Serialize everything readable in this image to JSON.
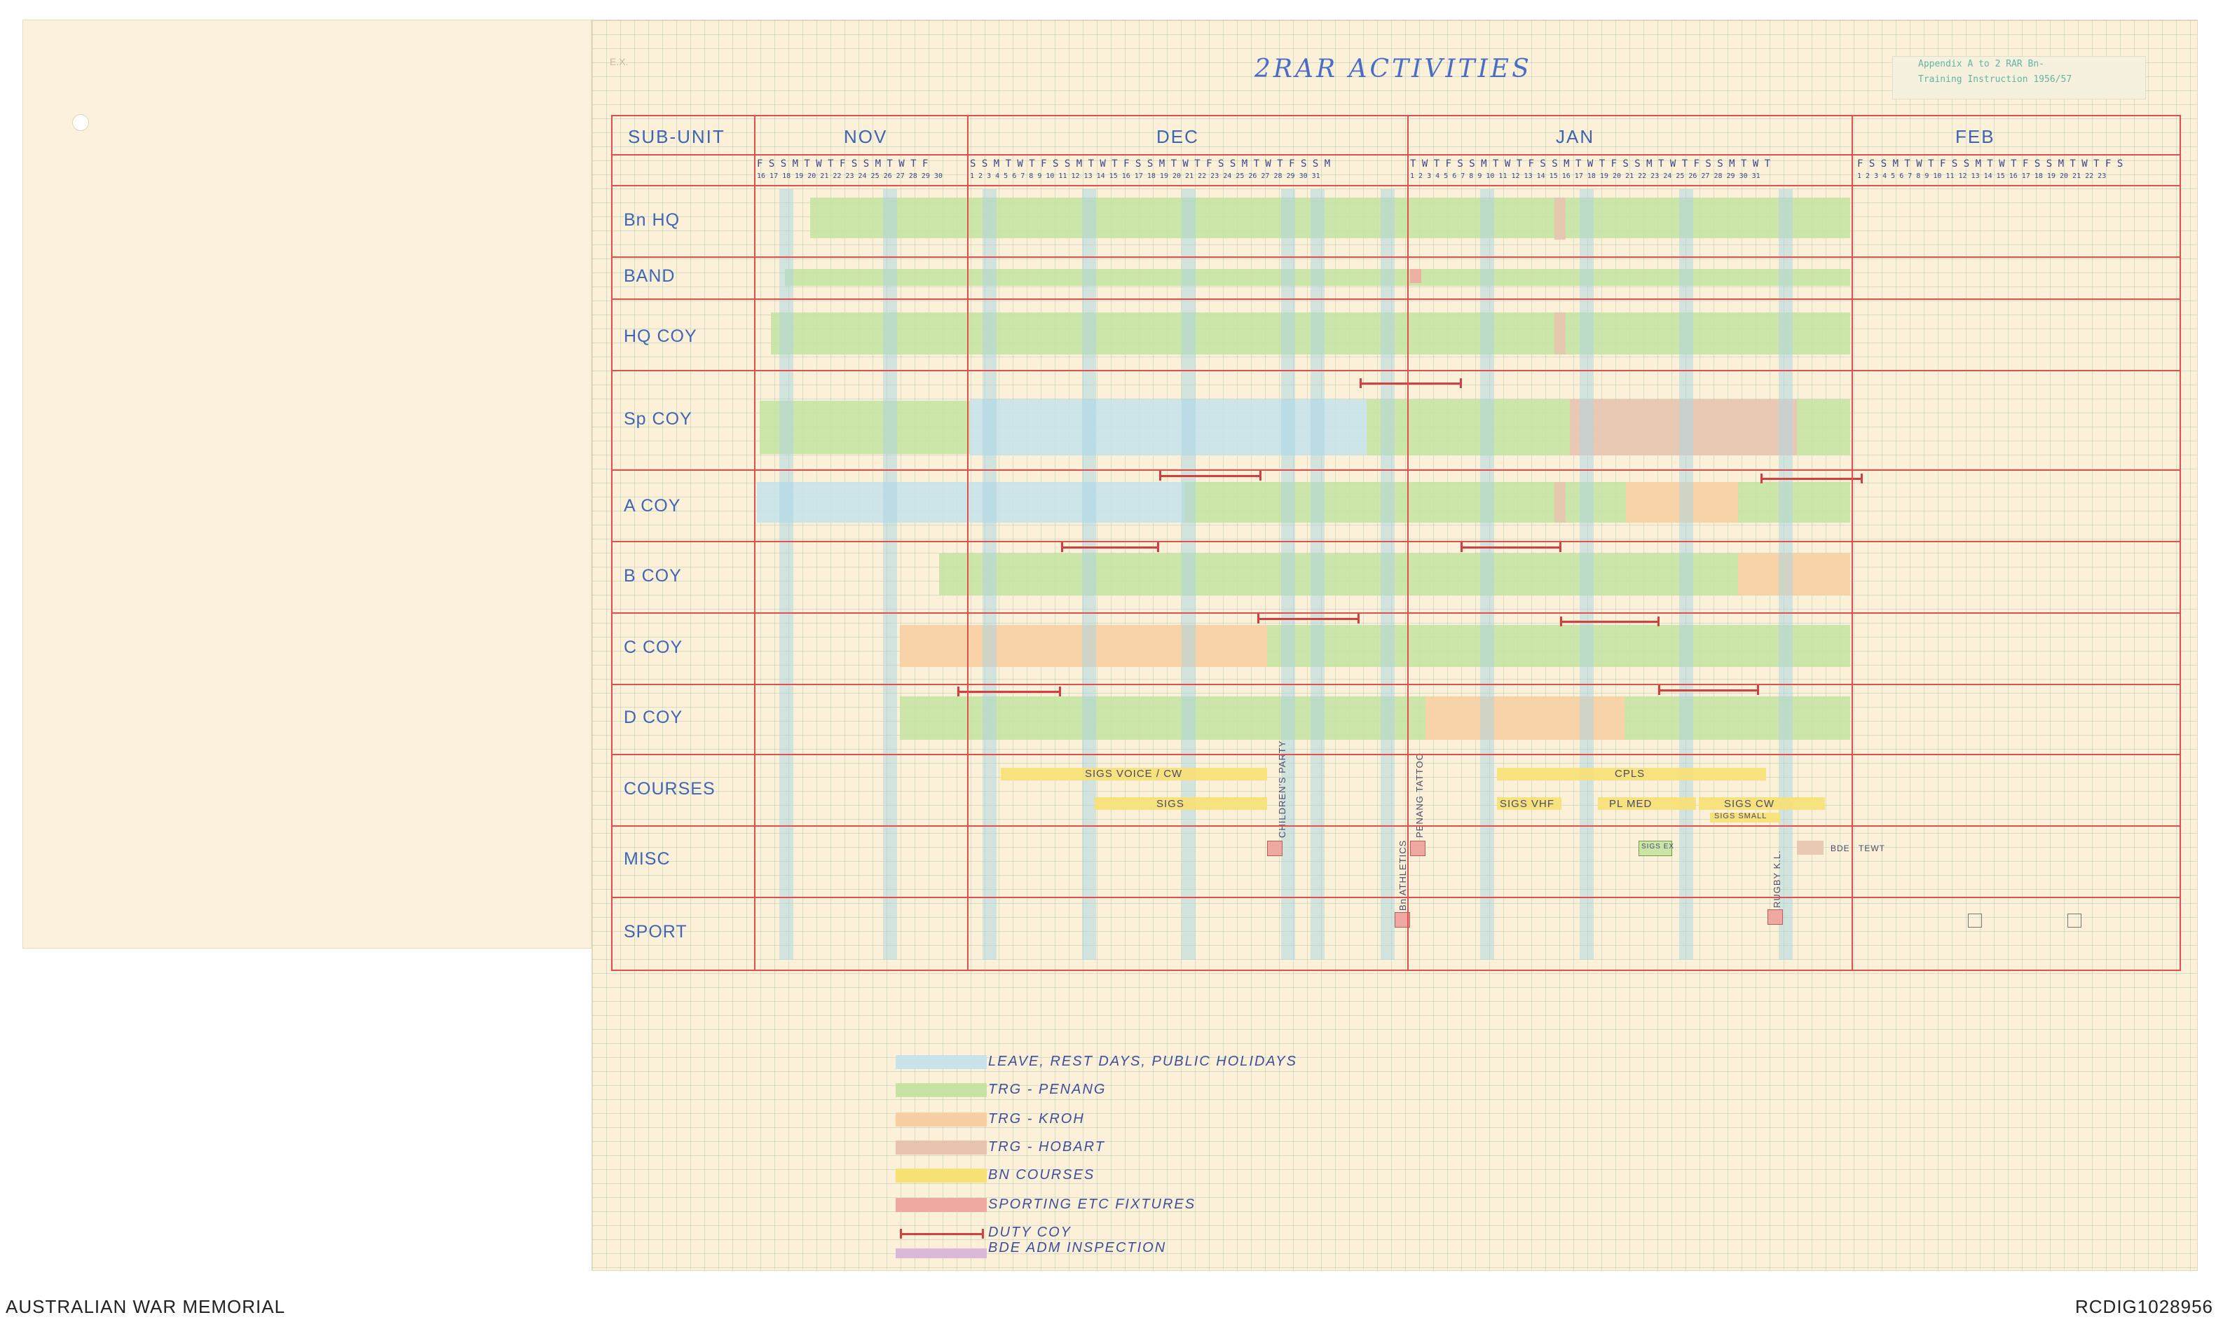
{
  "title": "2RAR ACTIVITIES",
  "stamp": {
    "line1": "Appendix A  to 2 RAR Bn-",
    "line2": "Training Instruction 1956/57"
  },
  "corner_mark": "E.X.",
  "headers": {
    "sub_unit": "SUB-UNIT",
    "months": [
      "NOV",
      "DEC",
      "JAN",
      "FEB"
    ]
  },
  "day_letters": [
    "F S S M T W T F S S M T W T F",
    "S S M T W T F S S M T W T F S S M T W T F S S M T W T F S S M",
    "T W T F S S M T W T F S S M T W T F S S M T W T F S S M T W T",
    "F S S M T W T F S S M T W T F S S M T W T F S"
  ],
  "day_numbers": [
    "16 17 18 19 20 21 22 23 24 25 26 27 28 29 30",
    "1 2 3 4 5 6 7 8 9 10 11 12 13 14 15 16 17 18 19 20 21 22 23 24 25 26 27 28 29 30 31",
    "1 2 3 4 5 6 7 8 9 10 11 12 13 14 15 16 17 18 19 20 21 22 23 24 25 26 27 28 29 30 31",
    "1 2 3 4 5 6 7 8 9 10 11 12 13 14 15 16 17 18 19 20 21 22 23"
  ],
  "units": [
    "Bn HQ",
    "BAND",
    "HQ COY",
    "Sp COY",
    "A COY",
    "B COY",
    "C COY",
    "D COY",
    "COURSES",
    "MISC",
    "SPORT"
  ],
  "chart_labels": {
    "sigs_voice_cw": "SIGS VOICE / CW",
    "sigs": "SIGS",
    "cpls": "CPLS",
    "sigs_vhf": "SIGS VHF",
    "pl_med": "PL MED",
    "sigs_cw": "SIGS CW",
    "sigs_small": "SIGS SMALL",
    "childrens_party": "CHILDREN'S PARTY",
    "penang_tattoo": "PENANG TATTOO",
    "bn_athletics": "Bn ATHLETICS",
    "rugby_kl": "RUGBY K.L.",
    "sigs_ex": "SIGS EX",
    "bde_tewt": "BDE",
    "tewt": "TEWT"
  },
  "legend": [
    {
      "label": "LEAVE, REST DAYS, PUBLIC HOLIDAYS",
      "color": "#c8e2ea"
    },
    {
      "label": "TRG - PENANG",
      "color": "#c6e3a3"
    },
    {
      "label": "TRG - KROH",
      "color": "#f7cfa2"
    },
    {
      "label": "TRG - HOBART",
      "color": "#e8c4b0"
    },
    {
      "label": "BN COURSES",
      "color": "#f7e074"
    },
    {
      "label": "SPORTING ETC FIXTURES",
      "color": "#efa8a0"
    },
    {
      "label": "DUTY COY",
      "color": "#d24040"
    },
    {
      "label": "BDE ADM INSPECTION",
      "color": "#d9b8d8"
    }
  ],
  "footer": {
    "left": "AUSTRALIAN WAR MEMORIAL",
    "right": "RCDIG1028956"
  }
}
